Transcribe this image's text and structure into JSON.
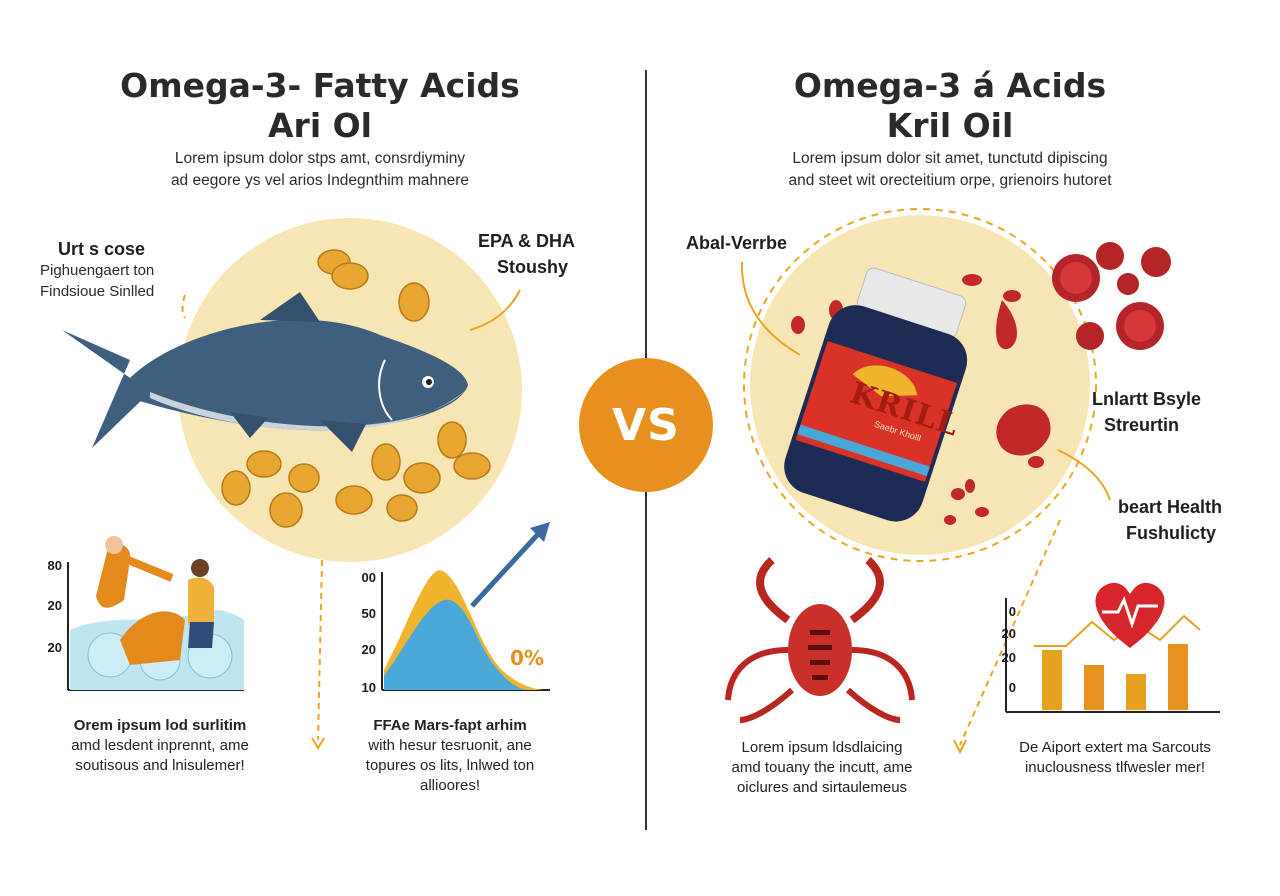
{
  "left": {
    "title_line1": "Omega-3- Fatty Acids",
    "title_line2": "Ari Ol",
    "subtitle_line1": "Lorem ipsum dolor stps amt, consrdiyminy",
    "subtitle_line2": "ad eegore ys vel arios Indegnthim mahnere",
    "callout_label": "Urt s cose",
    "callout_text_line1": "Pighuengaert ton",
    "callout_text_line2": "Findsioue Sinlled",
    "epa_line1": "EPA & DHA",
    "epa_line2": "Stoushy",
    "chart1_ticks": [
      "80",
      "20",
      "20"
    ],
    "chart2_ticks": [
      "00",
      "50",
      "20",
      "10"
    ],
    "chart2_percent": "0%",
    "caption1_line1": "Orem ipsum lod surlitim",
    "caption1_line2": "amd lesdent inprennt, ame",
    "caption1_line3": "soutisous and lnisulemer!",
    "caption2_line1": "FFAe Mars-fapt arhim",
    "caption2_line2": "with hesur tesruonit, ane",
    "caption2_line3": "topures os lits, lnlwed ton",
    "caption2_line4": "allioores!"
  },
  "vs_label": "VS",
  "right": {
    "title_line1": "Omega-3 á Acids",
    "title_line2": "Kril Oil",
    "subtitle_line1": "Lorem ipsum dolor  sit amet, tunctutd dipiscing",
    "subtitle_line2": "and steet wit orecteitium orpe, grienoirs hutoret",
    "callout_label": "Abal-Verrbe",
    "bottle_brand": "KRILL",
    "bottle_subtext": "Saebr Kholll",
    "label_a_line1": "Lnlartt Bsyle",
    "label_a_line2": "Streurtin",
    "label_b_line1": "beart Health",
    "label_b_line2": "Fushulicty",
    "chart_ticks": [
      "0",
      "20",
      "20",
      "0"
    ],
    "caption1_line1": "Lorem ipsum ldsdlaicing",
    "caption1_line2": "amd touany the incutt, ame",
    "caption1_line3": "oiclures and sirtaulemeus",
    "caption2_line1": "De Aiport extert ma Sarcouts",
    "caption2_line2": "inuclousness tlfwesler mer!"
  },
  "colors": {
    "circle_fill": "#f7e6b3",
    "accent_orange": "#e8901e",
    "fish_blue": "#3f5f7e",
    "krill_red": "#b8261f",
    "bottle_navy": "#1d2b55",
    "bar_gold": "#e6a11f"
  },
  "chart_data": [
    {
      "type": "bar",
      "categories": [
        "",
        "",
        "",
        ""
      ],
      "values": [
        20,
        15,
        12,
        22
      ],
      "ylim": [
        0,
        30
      ]
    }
  ]
}
